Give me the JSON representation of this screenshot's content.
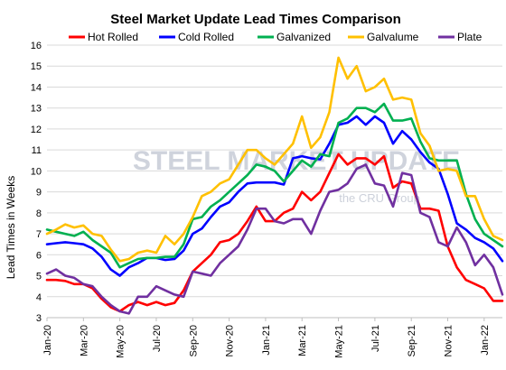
{
  "chart_data": {
    "type": "line",
    "title": "Steel Market Update Lead Times Comparison",
    "ylabel": "Lead Times in Weeks",
    "xlabel": "",
    "ylim": [
      3,
      16
    ],
    "yticks": [
      3,
      4,
      5,
      6,
      7,
      8,
      9,
      10,
      11,
      12,
      13,
      14,
      15,
      16
    ],
    "xtick_labels": [
      "Jan-20",
      "Mar-20",
      "May-20",
      "Jul-20",
      "Sep-20",
      "Nov-20",
      "Jan-21",
      "Mar-21",
      "May-21",
      "Jul-21",
      "Sep-21",
      "Nov-21",
      "Jan-22"
    ],
    "grid": true,
    "legend_position": "top",
    "watermark": {
      "main": "STEEL MARKET UPDATE",
      "sub": "the CRU Group"
    },
    "x": [
      "2020-01-01",
      "2020-01-15",
      "2020-02-01",
      "2020-02-15",
      "2020-03-01",
      "2020-03-15",
      "2020-04-01",
      "2020-04-15",
      "2020-05-01",
      "2020-05-15",
      "2020-06-01",
      "2020-06-15",
      "2020-07-01",
      "2020-07-15",
      "2020-08-01",
      "2020-08-15",
      "2020-09-01",
      "2020-09-15",
      "2020-10-01",
      "2020-10-15",
      "2020-11-01",
      "2020-11-15",
      "2020-12-01",
      "2020-12-15",
      "2021-01-01",
      "2021-01-15",
      "2021-02-01",
      "2021-02-15",
      "2021-03-01",
      "2021-03-15",
      "2021-04-01",
      "2021-04-15",
      "2021-05-01",
      "2021-05-15",
      "2021-06-01",
      "2021-06-15",
      "2021-07-01",
      "2021-07-15",
      "2021-08-01",
      "2021-08-15",
      "2021-09-01",
      "2021-09-15",
      "2021-10-01",
      "2021-10-15",
      "2021-11-01",
      "2021-11-15",
      "2021-12-01",
      "2021-12-15",
      "2022-01-01",
      "2022-01-15",
      "2022-02-01"
    ],
    "series": [
      {
        "name": "Hot Rolled",
        "color": "#ff0000",
        "values": [
          4.8,
          4.8,
          4.75,
          4.6,
          4.6,
          4.4,
          3.9,
          3.5,
          3.3,
          3.6,
          3.75,
          3.6,
          3.75,
          3.6,
          3.7,
          4.3,
          5.2,
          5.6,
          6.0,
          6.6,
          6.7,
          7.0,
          7.6,
          8.3,
          7.6,
          7.6,
          8.0,
          8.2,
          9.0,
          8.6,
          9.0,
          9.9,
          10.8,
          10.3,
          10.6,
          10.6,
          10.3,
          10.7,
          9.2,
          9.5,
          9.4,
          8.2,
          8.2,
          8.1,
          6.4,
          5.4,
          4.8,
          4.6,
          4.4,
          3.8,
          3.8
        ]
      },
      {
        "name": "Cold Rolled",
        "color": "#0000ff",
        "values": [
          6.5,
          6.55,
          6.6,
          6.55,
          6.5,
          6.3,
          5.9,
          5.3,
          5.0,
          5.4,
          5.6,
          5.85,
          5.85,
          5.75,
          5.8,
          6.2,
          7.0,
          7.25,
          7.8,
          8.3,
          8.5,
          9.0,
          9.4,
          9.45,
          9.45,
          9.45,
          9.35,
          10.6,
          10.7,
          10.6,
          10.55,
          11.3,
          12.2,
          12.3,
          12.6,
          12.2,
          12.6,
          12.3,
          11.3,
          11.9,
          11.5,
          10.9,
          10.4,
          10.1,
          8.9,
          7.5,
          7.2,
          6.8,
          6.6,
          6.3,
          5.7
        ]
      },
      {
        "name": "Galvanized",
        "color": "#00b050",
        "values": [
          7.2,
          7.1,
          7.0,
          6.9,
          7.1,
          6.7,
          6.4,
          6.1,
          5.4,
          5.6,
          5.8,
          5.85,
          5.85,
          5.9,
          5.9,
          6.5,
          7.7,
          7.8,
          8.3,
          8.6,
          9.0,
          9.4,
          9.8,
          10.3,
          10.2,
          10.0,
          9.5,
          10.0,
          10.5,
          10.2,
          10.8,
          10.7,
          12.3,
          12.5,
          13.0,
          13.0,
          12.8,
          13.2,
          12.4,
          12.4,
          12.5,
          11.4,
          10.6,
          10.5,
          10.5,
          10.5,
          8.9,
          7.7,
          7.0,
          6.7,
          6.4
        ]
      },
      {
        "name": "Galvalume",
        "color": "#ffc000",
        "values": [
          7.0,
          7.2,
          7.45,
          7.3,
          7.4,
          7.0,
          6.9,
          6.25,
          5.7,
          5.8,
          6.1,
          6.2,
          6.1,
          6.9,
          6.5,
          7.0,
          7.8,
          8.8,
          9.0,
          9.4,
          9.6,
          10.3,
          11.0,
          11.0,
          10.6,
          10.3,
          10.8,
          11.3,
          12.6,
          11.1,
          11.6,
          12.8,
          15.4,
          14.4,
          15.0,
          13.8,
          14.0,
          14.4,
          13.4,
          13.5,
          13.4,
          11.8,
          11.2,
          10.0,
          10.1,
          10.0,
          8.8,
          8.8,
          7.7,
          6.9,
          6.7
        ]
      },
      {
        "name": "Plate",
        "color": "#7030a0",
        "values": [
          5.1,
          5.3,
          5.0,
          4.9,
          4.6,
          4.5,
          4.0,
          3.6,
          3.3,
          3.2,
          4.0,
          4.0,
          4.5,
          4.3,
          4.1,
          4.0,
          5.2,
          5.1,
          5.0,
          5.6,
          6.0,
          6.4,
          7.2,
          8.2,
          8.2,
          7.6,
          7.5,
          7.7,
          7.7,
          7.0,
          8.1,
          9.0,
          9.1,
          9.4,
          10.1,
          10.3,
          9.4,
          9.3,
          8.3,
          9.9,
          9.8,
          8.0,
          7.8,
          6.6,
          6.4,
          7.3,
          6.6,
          5.5,
          6.0,
          5.4,
          4.1
        ]
      }
    ]
  }
}
